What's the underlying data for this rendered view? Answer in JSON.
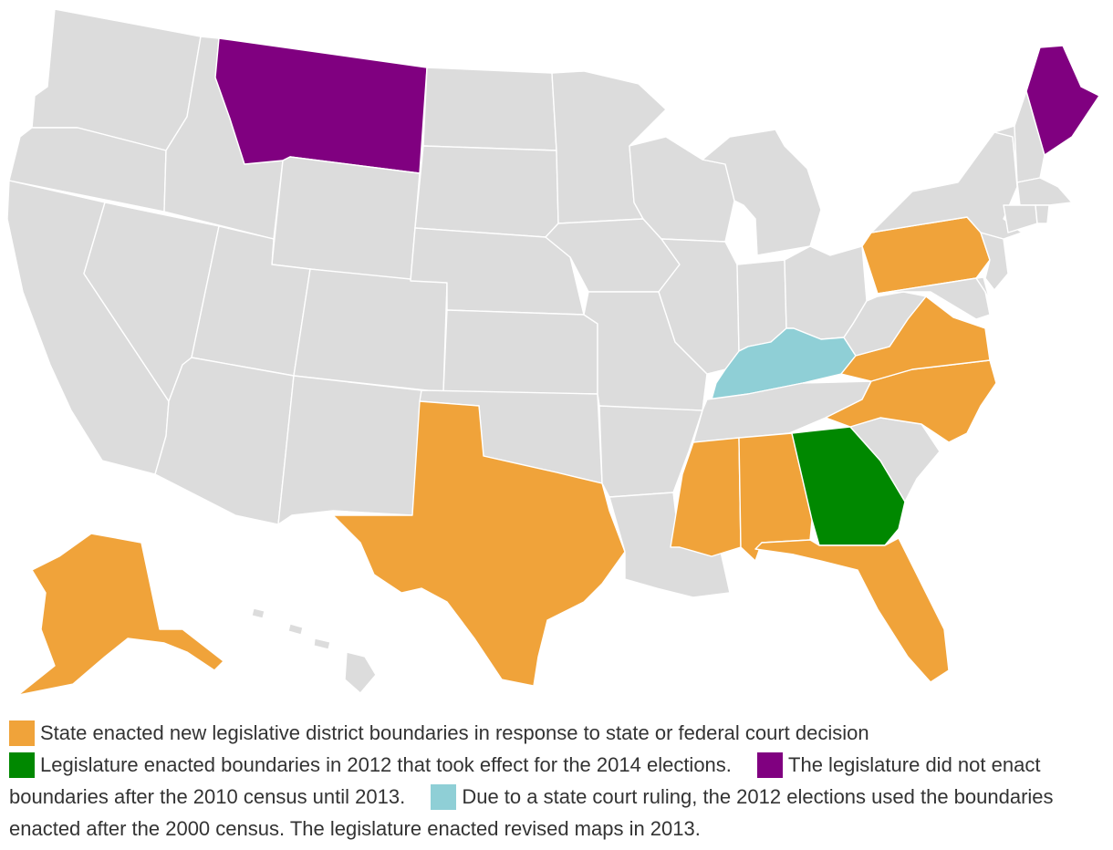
{
  "colors": {
    "none": "#dcdcdc",
    "court": "#f0a33a",
    "enacted_2012": "#008800",
    "no_enact_until_2013": "#800080",
    "state_court_2000": "#8fcfd6"
  },
  "states": {
    "WA": "none",
    "OR": "none",
    "CA": "none",
    "NV": "none",
    "ID": "none",
    "MT": "no_enact_until_2013",
    "WY": "none",
    "UT": "none",
    "AZ": "none",
    "CO": "none",
    "NM": "none",
    "ND": "none",
    "SD": "none",
    "NE": "none",
    "KS": "none",
    "OK": "none",
    "TX": "court",
    "MN": "none",
    "IA": "none",
    "MO": "none",
    "AR": "none",
    "LA": "none",
    "WI": "none",
    "IL": "none",
    "MI": "none",
    "IN": "none",
    "OH": "none",
    "KY": "state_court_2000",
    "TN": "none",
    "MS": "court",
    "AL": "court",
    "GA": "enacted_2012",
    "FL": "court",
    "SC": "none",
    "NC": "court",
    "VA": "court",
    "WV": "none",
    "PA": "court",
    "NY": "none",
    "ME": "no_enact_until_2013",
    "NH": "none",
    "VT": "none",
    "MA": "none",
    "CT": "none",
    "RI": "none",
    "NJ": "none",
    "DE": "none",
    "MD": "none",
    "AK": "court",
    "HI": "none"
  },
  "legend": [
    {
      "key": "court",
      "label": "State enacted new legislative district boundaries in response to state or federal court decision"
    },
    {
      "key": "enacted_2012",
      "label": "Legislature enacted boundaries in 2012 that took effect for the 2014 elections."
    },
    {
      "key": "no_enact_until_2013",
      "label": "The legislature did not enact boundaries after the 2010 census until 2013."
    },
    {
      "key": "state_court_2000",
      "label": "Due to a state court ruling, the 2012 elections used the boundaries enacted after the 2000 census. The legislature enacted revised maps in 2013."
    }
  ]
}
